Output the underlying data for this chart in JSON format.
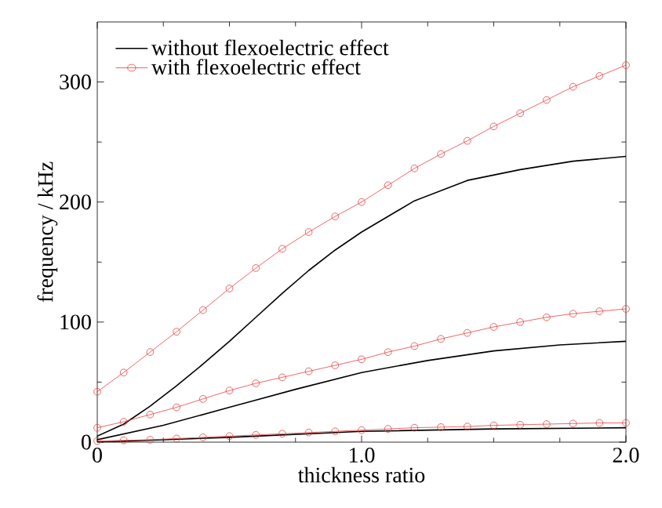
{
  "chart_data": {
    "type": "line",
    "xlabel": "thickness ratio",
    "ylabel": "frequency / kHz",
    "xlim": [
      0,
      2
    ],
    "ylim": [
      0,
      350
    ],
    "xticks": [
      0,
      {
        "value": 1,
        "label": "1.0"
      },
      {
        "value": 2,
        "label": "2.0"
      }
    ],
    "yticks": [
      0,
      100,
      200,
      300
    ],
    "legend": "top left",
    "series": [
      {
        "name": "without flexoelectric effect",
        "color": "#000000",
        "marker": "none",
        "x": [
          0,
          0.1,
          0.2,
          0.3,
          0.4,
          0.5,
          0.6,
          0.7,
          0.8,
          0.9,
          1.0,
          1.2,
          1.4,
          1.6,
          1.8,
          2.0
        ],
        "values": [
          5,
          15,
          30,
          47,
          65,
          84,
          104,
          124,
          143,
          160,
          175,
          201,
          218,
          227,
          234,
          238
        ]
      },
      {
        "name": "with flexoelectric effect",
        "color": "#e84040",
        "marker": "circle",
        "x": [
          0,
          0.1,
          0.2,
          0.3,
          0.4,
          0.5,
          0.6,
          0.7,
          0.8,
          0.9,
          1.0,
          1.1,
          1.2,
          1.3,
          1.4,
          1.5,
          1.6,
          1.7,
          1.8,
          1.9,
          2.0
        ],
        "values": [
          42,
          58,
          75,
          92,
          110,
          128,
          145,
          161,
          175,
          188,
          200,
          214,
          228,
          240,
          251,
          263,
          274,
          285,
          296,
          305,
          314
        ]
      },
      {
        "color": "#000000",
        "marker": "none",
        "x": [
          0,
          0.25,
          0.5,
          0.75,
          1.0,
          1.25,
          1.5,
          1.75,
          2.0
        ],
        "values": [
          2,
          14,
          29,
          44,
          58,
          68,
          76,
          81,
          84
        ]
      },
      {
        "color": "#e84040",
        "marker": "circle",
        "x": [
          0,
          0.1,
          0.2,
          0.3,
          0.4,
          0.5,
          0.6,
          0.7,
          0.8,
          0.9,
          1.0,
          1.1,
          1.2,
          1.3,
          1.4,
          1.5,
          1.6,
          1.7,
          1.8,
          1.9,
          2.0
        ],
        "values": [
          12,
          17,
          23,
          29,
          36,
          43,
          49,
          54,
          59,
          64,
          69,
          75,
          80,
          86,
          91,
          96,
          100,
          104,
          107,
          109,
          111
        ]
      },
      {
        "color": "#000000",
        "marker": "none",
        "x": [
          0,
          0.5,
          1.0,
          1.5,
          2.0
        ],
        "values": [
          0,
          4,
          9,
          11,
          12
        ]
      },
      {
        "color": "#e84040",
        "marker": "circle",
        "x": [
          0,
          0.1,
          0.2,
          0.3,
          0.4,
          0.5,
          0.6,
          0.7,
          0.8,
          0.9,
          1.0,
          1.1,
          1.2,
          1.3,
          1.4,
          1.5,
          1.6,
          1.7,
          1.8,
          1.9,
          2.0
        ],
        "values": [
          1,
          1.5,
          2,
          3,
          4,
          5,
          6,
          7,
          8,
          9,
          10,
          11,
          12,
          12.5,
          13,
          14,
          14.5,
          15,
          15.5,
          16,
          16
        ]
      }
    ]
  }
}
